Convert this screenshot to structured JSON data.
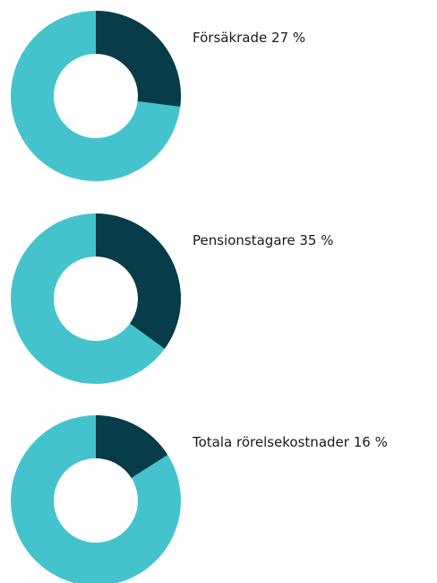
{
  "chart_data": [
    {
      "type": "donut",
      "title": "Försäkrade",
      "values": [
        27
      ],
      "value_labels": [
        "27 %"
      ],
      "color": "#073c48",
      "rest_color": "#45c3cc"
    },
    {
      "type": "donut",
      "title": "Pensionstagare",
      "values": [
        35
      ],
      "value_labels": [
        "35 %"
      ],
      "color": "#073c48",
      "rest_color": "#45c3cc"
    },
    {
      "type": "donut",
      "title": "Totala rörelsekostnader",
      "values": [
        16
      ],
      "value_labels": [
        "16 %"
      ],
      "color": "#073c48",
      "rest_color": "#45c3cc"
    }
  ]
}
